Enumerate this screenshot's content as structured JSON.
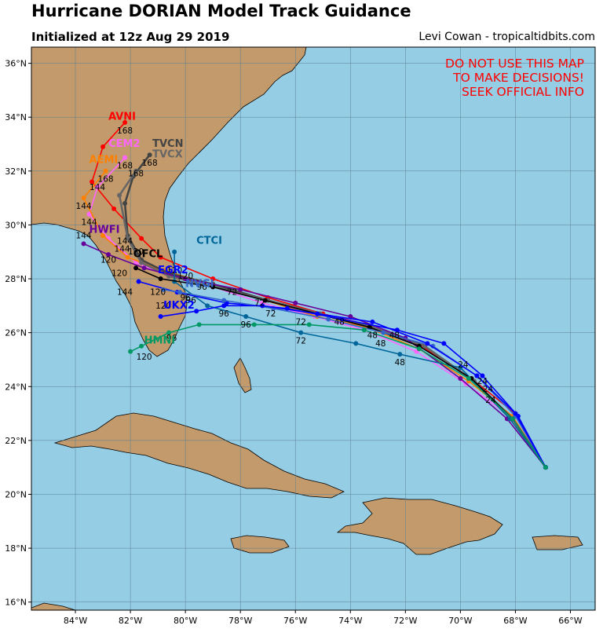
{
  "header": {
    "title": "Hurricane DORIAN Model Track Guidance",
    "initialized": "Initialized at 12z Aug 29 2019",
    "credit": "Levi Cowan - tropicaltidbits.com"
  },
  "warning": [
    "DO NOT USE THIS MAP",
    "TO MAKE DECISIONS!",
    "SEEK OFFICIAL INFO"
  ],
  "colors": {
    "ocean": "#95cde5",
    "land": "#c29a6b",
    "grid": "#5a7f93",
    "warning": "#ff0000"
  },
  "map": {
    "lon_range": [
      -85.6,
      -65.1
    ],
    "lat_range": [
      15.7,
      36.6
    ],
    "lon_ticks": [
      {
        "v": -84,
        "label": "84°W"
      },
      {
        "v": -82,
        "label": "82°W"
      },
      {
        "v": -80,
        "label": "80°W"
      },
      {
        "v": -78,
        "label": "78°W"
      },
      {
        "v": -76,
        "label": "76°W"
      },
      {
        "v": -74,
        "label": "74°W"
      },
      {
        "v": -72,
        "label": "72°W"
      },
      {
        "v": -70,
        "label": "70°W"
      },
      {
        "v": -68,
        "label": "68°W"
      },
      {
        "v": -66,
        "label": "66°W"
      }
    ],
    "lat_ticks": [
      {
        "v": 16,
        "label": "16°N"
      },
      {
        "v": 18,
        "label": "18°N"
      },
      {
        "v": 20,
        "label": "20°N"
      },
      {
        "v": 22,
        "label": "22°N"
      },
      {
        "v": 24,
        "label": "24°N"
      },
      {
        "v": 26,
        "label": "26°N"
      },
      {
        "v": 28,
        "label": "28°N"
      },
      {
        "v": 30,
        "label": "30°N"
      },
      {
        "v": 32,
        "label": "32°N"
      },
      {
        "v": 34,
        "label": "34°N"
      },
      {
        "v": 36,
        "label": "36°N"
      }
    ]
  },
  "tracks": [
    {
      "name": "AVNI",
      "color": "#ff0000",
      "label_pos": [
        -82.8,
        33.9
      ],
      "points": [
        [
          -66.9,
          21.0
        ],
        [
          -68.0,
          23.0
        ],
        [
          -69.6,
          24.3
        ],
        [
          -71.4,
          25.5
        ],
        [
          -73.4,
          26.3
        ],
        [
          -75.0,
          26.7
        ],
        [
          -77.0,
          27.3
        ],
        [
          -79.0,
          28.0
        ],
        [
          -80.9,
          28.8
        ],
        [
          -81.6,
          29.5
        ],
        [
          -82.6,
          30.6
        ],
        [
          -83.4,
          31.6
        ],
        [
          -83.0,
          32.9
        ],
        [
          -82.2,
          33.8
        ]
      ],
      "hours": [
        {
          "t": "168",
          "p": [
            -82.2,
            33.4
          ]
        }
      ]
    },
    {
      "name": "CEM2",
      "color": "#ff66ff",
      "label_pos": [
        -82.8,
        32.9
      ],
      "points": [
        [
          -66.9,
          21.0
        ],
        [
          -68.2,
          22.9
        ],
        [
          -69.8,
          24.1
        ],
        [
          -71.6,
          25.3
        ],
        [
          -73.5,
          26.1
        ],
        [
          -75.3,
          26.6
        ],
        [
          -77.2,
          27.1
        ],
        [
          -79.0,
          27.7
        ],
        [
          -80.6,
          28.1
        ],
        [
          -81.8,
          28.6
        ],
        [
          -82.8,
          29.5
        ],
        [
          -83.5,
          30.4
        ],
        [
          -83.2,
          31.4
        ],
        [
          -82.2,
          32.5
        ]
      ],
      "hours": [
        {
          "t": "168",
          "p": [
            -82.2,
            32.1
          ]
        }
      ]
    },
    {
      "name": "AEMI",
      "color": "#ff8000",
      "label_pos": [
        -83.5,
        32.3
      ],
      "points": [
        [
          -66.9,
          21.0
        ],
        [
          -68.1,
          22.9
        ],
        [
          -69.7,
          24.2
        ],
        [
          -71.5,
          25.4
        ],
        [
          -73.4,
          26.2
        ],
        [
          -75.2,
          26.6
        ],
        [
          -77.1,
          27.2
        ],
        [
          -79.0,
          27.8
        ],
        [
          -80.8,
          28.3
        ],
        [
          -82.1,
          28.8
        ],
        [
          -83.0,
          29.6
        ],
        [
          -83.7,
          31.0
        ],
        [
          -82.9,
          32.0
        ]
      ],
      "hours": [
        {
          "t": "168",
          "p": [
            -82.9,
            31.6
          ]
        },
        {
          "t": "144",
          "p": [
            -83.7,
            30.6
          ]
        }
      ]
    },
    {
      "name": "TVCN",
      "color": "#444444",
      "label_pos": [
        -81.2,
        32.9
      ],
      "points": [
        [
          -66.9,
          21.0
        ],
        [
          -68.1,
          22.8
        ],
        [
          -69.5,
          24.2
        ],
        [
          -71.3,
          25.5
        ],
        [
          -73.2,
          26.2
        ],
        [
          -75.1,
          26.7
        ],
        [
          -77.0,
          27.2
        ],
        [
          -79.0,
          27.8
        ],
        [
          -80.6,
          28.2
        ],
        [
          -81.6,
          28.7
        ],
        [
          -82.1,
          29.6
        ],
        [
          -82.2,
          30.8
        ],
        [
          -81.9,
          31.8
        ],
        [
          -81.3,
          32.6
        ]
      ],
      "hours": [
        {
          "t": "168",
          "p": [
            -81.3,
            32.2
          ]
        }
      ]
    },
    {
      "name": "TVCX",
      "color": "#666666",
      "label_pos": [
        -81.2,
        32.5
      ],
      "points": [
        [
          -66.9,
          21.0
        ],
        [
          -68.1,
          22.8
        ],
        [
          -69.5,
          24.2
        ],
        [
          -71.3,
          25.5
        ],
        [
          -73.2,
          26.2
        ],
        [
          -75.1,
          26.7
        ],
        [
          -77.0,
          27.2
        ],
        [
          -79.0,
          27.7
        ],
        [
          -80.6,
          28.1
        ],
        [
          -81.6,
          28.6
        ],
        [
          -82.1,
          29.5
        ],
        [
          -82.4,
          31.1
        ],
        [
          -81.8,
          32.0
        ]
      ],
      "hours": [
        {
          "t": "168",
          "p": [
            -81.8,
            31.8
          ]
        }
      ]
    },
    {
      "name": "HWFI",
      "color": "#660099",
      "label_pos": [
        -83.5,
        29.7
      ],
      "points": [
        [
          -66.9,
          21.0
        ],
        [
          -68.3,
          22.8
        ],
        [
          -70.0,
          24.3
        ],
        [
          -72.0,
          25.8
        ],
        [
          -74.0,
          26.6
        ],
        [
          -76.0,
          27.1
        ],
        [
          -78.0,
          27.6
        ],
        [
          -80.0,
          28.0
        ],
        [
          -81.5,
          28.4
        ],
        [
          -82.8,
          28.9
        ],
        [
          -83.7,
          29.3
        ]
      ],
      "hours": [
        {
          "t": "144",
          "p": [
            -83.7,
            29.5
          ]
        },
        {
          "t": "120",
          "p": [
            -82.8,
            28.6
          ]
        }
      ]
    },
    {
      "name": "CTCI",
      "color": "#006699",
      "label_pos": [
        -79.6,
        29.3
      ],
      "points": [
        [
          -66.9,
          21.0
        ],
        [
          -68.2,
          22.8
        ],
        [
          -70.0,
          24.7
        ],
        [
          -72.2,
          25.2
        ],
        [
          -73.8,
          25.6
        ],
        [
          -75.8,
          26.0
        ],
        [
          -77.8,
          26.6
        ],
        [
          -79.2,
          27.0
        ],
        [
          -80.4,
          27.9
        ],
        [
          -80.4,
          29.0
        ]
      ],
      "hours": [
        {
          "t": "48",
          "p": [
            -72.2,
            24.8
          ]
        },
        {
          "t": "72",
          "p": [
            -75.8,
            25.6
          ]
        },
        {
          "t": "96",
          "p": [
            -77.8,
            26.2
          ]
        },
        {
          "t": "120",
          "p": [
            -80.0,
            28.0
          ]
        }
      ]
    },
    {
      "name": "OFCL",
      "color": "#000000",
      "label_pos": [
        -81.9,
        28.8
      ],
      "points": [
        [
          -66.9,
          21.0
        ],
        [
          -68.1,
          22.8
        ],
        [
          -69.6,
          24.3
        ],
        [
          -71.5,
          25.5
        ],
        [
          -73.3,
          26.2
        ],
        [
          -75.2,
          26.7
        ],
        [
          -77.1,
          27.2
        ],
        [
          -79.0,
          27.7
        ],
        [
          -80.9,
          28.0
        ],
        [
          -81.8,
          28.4
        ]
      ],
      "hours": [
        {
          "t": "120",
          "p": [
            -82.4,
            28.1
          ]
        }
      ]
    },
    {
      "name": "EGR2",
      "color": "#0000ff",
      "label_pos": [
        -81.0,
        28.2
      ],
      "points": [
        [
          -66.9,
          21.0
        ],
        [
          -67.9,
          22.9
        ],
        [
          -69.2,
          24.4
        ],
        [
          -70.6,
          25.6
        ],
        [
          -72.3,
          26.1
        ],
        [
          -74.3,
          26.5
        ],
        [
          -76.3,
          26.9
        ],
        [
          -78.5,
          27.1
        ],
        [
          -80.3,
          27.5
        ],
        [
          -81.7,
          27.9
        ]
      ],
      "hours": [
        {
          "t": "144",
          "p": [
            -82.2,
            27.4
          ]
        },
        {
          "t": "120",
          "p": [
            -81.0,
            27.4
          ]
        }
      ]
    },
    {
      "name": "NVGI",
      "color": "#3366cc",
      "label_pos": [
        -80.0,
        27.7
      ],
      "points": [
        [
          -66.9,
          21.0
        ],
        [
          -68.0,
          22.9
        ],
        [
          -69.4,
          24.4
        ],
        [
          -71.0,
          25.5
        ],
        [
          -72.8,
          26.0
        ],
        [
          -74.8,
          26.5
        ],
        [
          -76.8,
          26.9
        ],
        [
          -78.6,
          27.2
        ],
        [
          -80.2,
          27.5
        ],
        [
          -80.8,
          27.6
        ]
      ],
      "hours": [
        {
          "t": "96",
          "p": [
            -79.8,
            27.1
          ]
        }
      ]
    },
    {
      "name": "UKX2",
      "color": "#0000ff",
      "label_pos": [
        -80.8,
        26.9
      ],
      "points": [
        [
          -66.9,
          21.0
        ],
        [
          -68.0,
          23.0
        ],
        [
          -69.4,
          24.4
        ],
        [
          -71.2,
          25.6
        ],
        [
          -73.2,
          26.4
        ],
        [
          -75.2,
          26.7
        ],
        [
          -77.2,
          27.0
        ],
        [
          -78.6,
          27.0
        ],
        [
          -79.6,
          26.8
        ],
        [
          -80.9,
          26.6
        ]
      ],
      "hours": [
        {
          "t": "96",
          "p": [
            -78.6,
            26.6
          ]
        },
        {
          "t": "120",
          "p": [
            -80.8,
            26.9
          ]
        }
      ]
    },
    {
      "name": "HMNI",
      "color": "#009966",
      "label_pos": [
        -81.5,
        25.6
      ],
      "points": [
        [
          -66.9,
          21.0
        ],
        [
          -68.1,
          22.8
        ],
        [
          -69.7,
          24.3
        ],
        [
          -71.5,
          25.4
        ],
        [
          -73.5,
          26.1
        ],
        [
          -75.5,
          26.3
        ],
        [
          -77.5,
          26.3
        ],
        [
          -79.5,
          26.3
        ],
        [
          -80.6,
          26.0
        ],
        [
          -81.6,
          25.5
        ],
        [
          -82.0,
          25.3
        ]
      ],
      "hours": [
        {
          "t": "96",
          "p": [
            -80.5,
            25.7
          ]
        },
        {
          "t": "120",
          "p": [
            -81.5,
            25.0
          ]
        }
      ]
    }
  ],
  "intermediate_labels": [
    {
      "t": "24",
      "p": [
        -69.9,
        24.7
      ]
    },
    {
      "t": "24",
      "p": [
        -69.2,
        24.1
      ]
    },
    {
      "t": "24",
      "p": [
        -69.0,
        23.8
      ]
    },
    {
      "t": "24",
      "p": [
        -68.9,
        23.4
      ]
    },
    {
      "t": "48",
      "p": [
        -73.2,
        25.8
      ]
    },
    {
      "t": "48",
      "p": [
        -72.4,
        25.8
      ]
    },
    {
      "t": "48",
      "p": [
        -74.4,
        26.3
      ]
    },
    {
      "t": "48",
      "p": [
        -72.9,
        25.5
      ]
    },
    {
      "t": "72",
      "p": [
        -76.9,
        26.6
      ]
    },
    {
      "t": "72",
      "p": [
        -75.8,
        26.3
      ]
    },
    {
      "t": "72",
      "p": [
        -78.3,
        27.4
      ]
    },
    {
      "t": "72",
      "p": [
        -77.3,
        27.0
      ]
    },
    {
      "t": "96",
      "p": [
        -79.4,
        27.6
      ]
    },
    {
      "t": "96",
      "p": [
        -80.0,
        27.2
      ]
    },
    {
      "t": "120",
      "p": [
        -80.4,
        28.2
      ]
    },
    {
      "t": "120",
      "p": [
        -81.8,
        28.9
      ]
    },
    {
      "t": "144",
      "p": [
        -82.3,
        29.0
      ]
    },
    {
      "t": "144",
      "p": [
        -82.2,
        29.3
      ]
    },
    {
      "t": "144",
      "p": [
        -83.5,
        30.0
      ]
    },
    {
      "t": "144",
      "p": [
        -83.2,
        31.3
      ]
    }
  ]
}
